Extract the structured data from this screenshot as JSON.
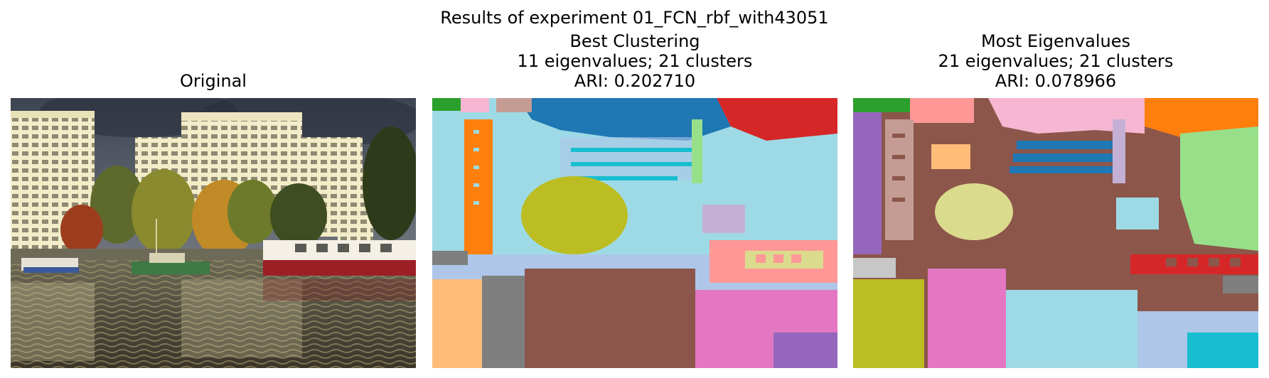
{
  "figure": {
    "suptitle": "Results of experiment 01_FCN_rbf_with43051"
  },
  "panels": [
    {
      "title_lines": [
        "Original"
      ],
      "content": "photograph of apartment buildings, trees and moored boats on a harbor"
    },
    {
      "title_lines": [
        "Best Clustering",
        "11 eigenvalues; 21 clusters",
        "ARI: 0.202710"
      ],
      "content": "segmentation map"
    },
    {
      "title_lines": [
        "Most Eigenvalues",
        "21 eigenvalues; 21 clusters",
        "ARI: 0.078966"
      ],
      "content": "segmentation map"
    }
  ],
  "colors": {
    "tab_blue": "#1f77b4",
    "tab_lightblue": "#aec7e8",
    "tab_orange": "#ff7f0e",
    "tab_lightorange": "#ffbb78",
    "tab_green": "#2ca02c",
    "tab_lightgreen": "#98df8a",
    "tab_red": "#d62728",
    "tab_lightred": "#ff9896",
    "tab_purple": "#9467bd",
    "tab_lightpurple": "#c5b0d5",
    "tab_brown": "#8c564b",
    "tab_lightbrown": "#c49c94",
    "tab_pink": "#e377c2",
    "tab_lightpink": "#f7b6d2",
    "tab_gray": "#7f7f7f",
    "tab_lightgray": "#c7c7c7",
    "tab_olive": "#bcbd22",
    "tab_lightolive": "#dbdb8d",
    "tab_cyan": "#17becf",
    "tab_lightcyan": "#9edae5"
  }
}
